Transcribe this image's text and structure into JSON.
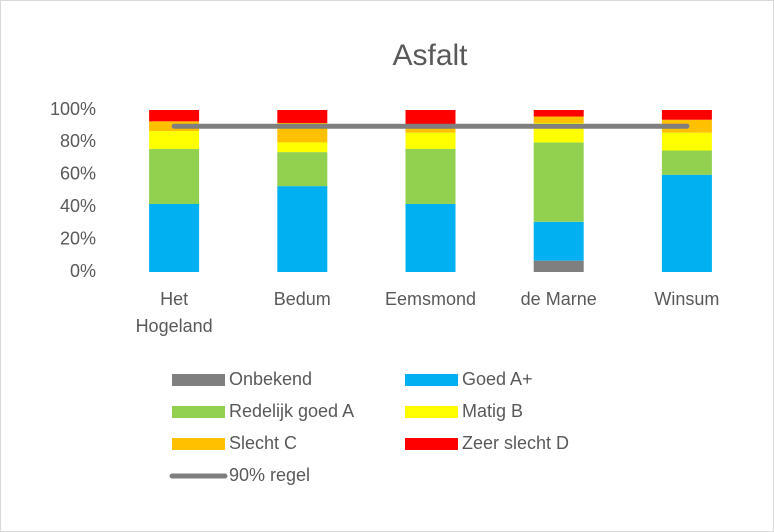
{
  "chart_data": {
    "type": "stacked_bar",
    "title": "Asfalt",
    "categories": [
      "Het Hogeland",
      "Bedum",
      "Eemsmond",
      "de Marne",
      "Winsum"
    ],
    "series": [
      {
        "name": "Onbekend",
        "color": "#7f7f7f",
        "values": [
          0,
          0,
          0,
          7,
          0
        ]
      },
      {
        "name": "Goed A+",
        "color": "#00b0f0",
        "values": [
          42,
          53,
          42,
          24,
          60
        ]
      },
      {
        "name": "Redelijk goed A",
        "color": "#92d050",
        "values": [
          34,
          21,
          34,
          49,
          15
        ]
      },
      {
        "name": "Matig B",
        "color": "#ffff00",
        "values": [
          11,
          6,
          10,
          12,
          11
        ]
      },
      {
        "name": "Slecht C",
        "color": "#ffc000",
        "values": [
          6,
          12,
          5,
          4,
          8
        ]
      },
      {
        "name": "Zeer slecht D",
        "color": "#ff0000",
        "values": [
          7,
          8,
          9,
          4,
          6
        ]
      },
      {
        "name": "90% regel",
        "color": "#7f7f7f",
        "type": "line",
        "values": [
          90,
          90,
          90,
          90,
          90
        ]
      }
    ],
    "ylim": [
      0,
      100
    ],
    "yticks": [
      {
        "value": 0,
        "label": "0%"
      },
      {
        "value": 20,
        "label": "20%"
      },
      {
        "value": 40,
        "label": "40%"
      },
      {
        "value": 60,
        "label": "60%"
      },
      {
        "value": 80,
        "label": "80%"
      },
      {
        "value": 100,
        "label": "100%"
      }
    ],
    "grid": false,
    "legend": "bottom"
  }
}
